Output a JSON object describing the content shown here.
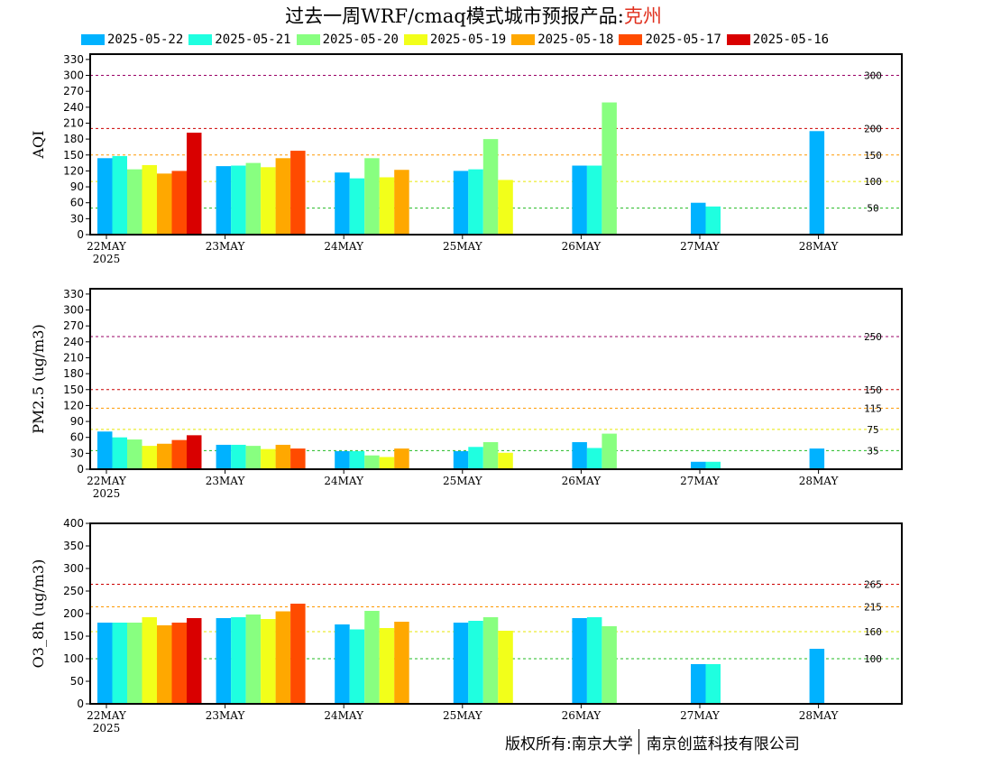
{
  "title": {
    "prefix": "过去一周WRF/cmaq模式城市预报产品:",
    "city": "克州"
  },
  "colors": {
    "series": [
      "#00b2ff",
      "#1fffe0",
      "#88ff80",
      "#f2ff1a",
      "#ffa800",
      "#ff4b00",
      "#d90000"
    ],
    "threshold_green": "#22bb22",
    "threshold_yellow": "#e6e600",
    "threshold_orange": "#ff9900",
    "threshold_red": "#cc0000",
    "threshold_purple": "#990066"
  },
  "legend": [
    "2025-05-22",
    "2025-05-21",
    "2025-05-20",
    "2025-05-19",
    "2025-05-18",
    "2025-05-17",
    "2025-05-16"
  ],
  "footer": {
    "left": "版权所有:南京大学",
    "right": "南京创蓝科技有限公司"
  },
  "chart_data": [
    {
      "type": "bar",
      "ylabel": "AQI",
      "ylim": [
        0,
        340
      ],
      "yticks": [
        0,
        30,
        60,
        90,
        120,
        150,
        180,
        210,
        240,
        270,
        300,
        330
      ],
      "categories": [
        "22MAY",
        "23MAY",
        "24MAY",
        "25MAY",
        "26MAY",
        "27MAY",
        "28MAY"
      ],
      "year_label": "2025",
      "thresholds": [
        {
          "value": 50,
          "label": "50",
          "color": "green"
        },
        {
          "value": 100,
          "label": "100",
          "color": "yellow"
        },
        {
          "value": 150,
          "label": "150",
          "color": "orange"
        },
        {
          "value": 200,
          "label": "200",
          "color": "red"
        },
        {
          "value": 300,
          "label": "300",
          "color": "purple"
        }
      ],
      "series": [
        {
          "name": "2025-05-22",
          "values": [
            144,
            129,
            117,
            120,
            130,
            60,
            195
          ]
        },
        {
          "name": "2025-05-21",
          "values": [
            148,
            130,
            106,
            123,
            130,
            53,
            null
          ]
        },
        {
          "name": "2025-05-20",
          "values": [
            123,
            135,
            144,
            180,
            249,
            null,
            null
          ]
        },
        {
          "name": "2025-05-19",
          "values": [
            131,
            127,
            108,
            103,
            null,
            null,
            null
          ]
        },
        {
          "name": "2025-05-18",
          "values": [
            115,
            144,
            122,
            null,
            null,
            null,
            null
          ]
        },
        {
          "name": "2025-05-17",
          "values": [
            120,
            158,
            null,
            null,
            null,
            null,
            null
          ]
        },
        {
          "name": "2025-05-16",
          "values": [
            192,
            null,
            null,
            null,
            null,
            null,
            null
          ]
        }
      ]
    },
    {
      "type": "bar",
      "ylabel": "PM2.5 (ug/m3)",
      "ylim": [
        0,
        340
      ],
      "yticks": [
        0,
        30,
        60,
        90,
        120,
        150,
        180,
        210,
        240,
        270,
        300,
        330
      ],
      "categories": [
        "22MAY",
        "23MAY",
        "24MAY",
        "25MAY",
        "26MAY",
        "27MAY",
        "28MAY"
      ],
      "year_label": "2025",
      "thresholds": [
        {
          "value": 35,
          "label": "35",
          "color": "green"
        },
        {
          "value": 75,
          "label": "75",
          "color": "yellow"
        },
        {
          "value": 115,
          "label": "115",
          "color": "orange"
        },
        {
          "value": 150,
          "label": "150",
          "color": "red"
        },
        {
          "value": 250,
          "label": "250",
          "color": "purple"
        }
      ],
      "series": [
        {
          "name": "2025-05-22",
          "values": [
            71,
            46,
            34,
            34,
            51,
            14,
            39
          ]
        },
        {
          "name": "2025-05-21",
          "values": [
            60,
            46,
            34,
            42,
            40,
            14,
            null
          ]
        },
        {
          "name": "2025-05-20",
          "values": [
            56,
            44,
            26,
            51,
            67,
            null,
            null
          ]
        },
        {
          "name": "2025-05-19",
          "values": [
            44,
            38,
            23,
            31,
            null,
            null,
            null
          ]
        },
        {
          "name": "2025-05-18",
          "values": [
            48,
            46,
            39,
            null,
            null,
            null,
            null
          ]
        },
        {
          "name": "2025-05-17",
          "values": [
            55,
            39,
            null,
            null,
            null,
            null,
            null
          ]
        },
        {
          "name": "2025-05-16",
          "values": [
            64,
            null,
            null,
            null,
            null,
            null,
            null
          ]
        }
      ]
    },
    {
      "type": "bar",
      "ylabel": "O3_8h (ug/m3)",
      "ylim": [
        0,
        400
      ],
      "yticks": [
        0,
        50,
        100,
        150,
        200,
        250,
        300,
        350,
        400
      ],
      "categories": [
        "22MAY",
        "23MAY",
        "24MAY",
        "25MAY",
        "26MAY",
        "27MAY",
        "28MAY"
      ],
      "year_label": "2025",
      "thresholds": [
        {
          "value": 100,
          "label": "100",
          "color": "green"
        },
        {
          "value": 160,
          "label": "160",
          "color": "yellow"
        },
        {
          "value": 215,
          "label": "215",
          "color": "orange"
        },
        {
          "value": 265,
          "label": "265",
          "color": "red"
        }
      ],
      "series": [
        {
          "name": "2025-05-22",
          "values": [
            180,
            190,
            176,
            180,
            190,
            88,
            122
          ]
        },
        {
          "name": "2025-05-21",
          "values": [
            180,
            192,
            165,
            184,
            192,
            88,
            null
          ]
        },
        {
          "name": "2025-05-20",
          "values": [
            180,
            198,
            206,
            192,
            172,
            null,
            null
          ]
        },
        {
          "name": "2025-05-19",
          "values": [
            192,
            188,
            168,
            162,
            null,
            null,
            null
          ]
        },
        {
          "name": "2025-05-18",
          "values": [
            174,
            205,
            182,
            null,
            null,
            null,
            null
          ]
        },
        {
          "name": "2025-05-17",
          "values": [
            180,
            222,
            null,
            null,
            null,
            null,
            null
          ]
        },
        {
          "name": "2025-05-16",
          "values": [
            190,
            null,
            null,
            null,
            null,
            null,
            null
          ]
        }
      ]
    }
  ]
}
